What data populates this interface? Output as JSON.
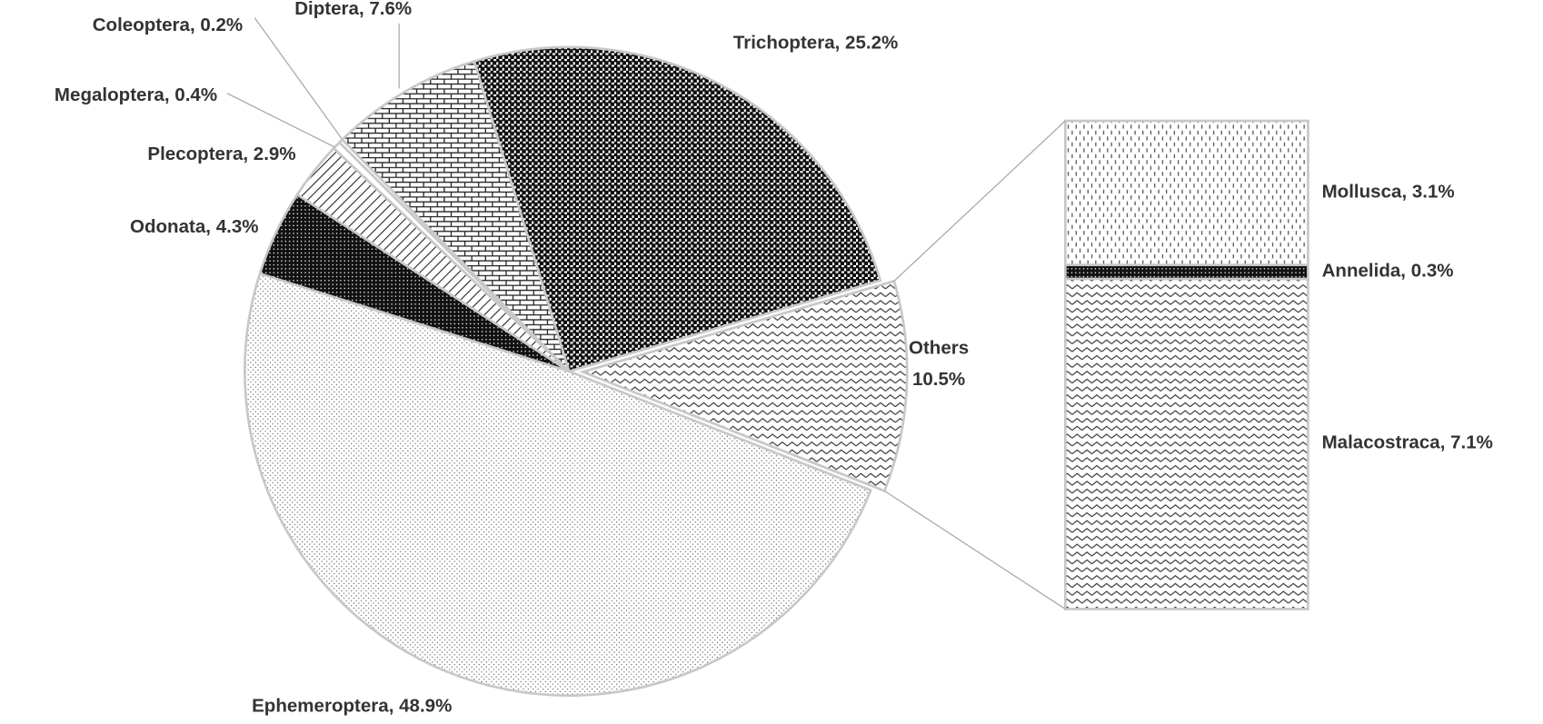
{
  "chart_data": {
    "type": "bar-of-pie",
    "categories": [
      "Trichoptera",
      "Others",
      "Ephemeroptera",
      "Odonata",
      "Plecoptera",
      "Megaloptera",
      "Coleoptera",
      "Diptera"
    ],
    "values": [
      25.2,
      10.5,
      48.9,
      4.3,
      2.9,
      0.4,
      0.2,
      7.6
    ],
    "value_labels": [
      "25.2%",
      "10.5%",
      "48.9%",
      "4.3%",
      "2.9%",
      "0.4%",
      "0.2%",
      "7.6%"
    ],
    "patterns": [
      "checker",
      "zigzag",
      "dots",
      "dark-grid",
      "diagonal",
      "plain",
      "plain",
      "brick"
    ],
    "label_separator": ", ",
    "breakout": {
      "categories": [
        "Mollusca",
        "Annelida",
        "Malacostraca"
      ],
      "values": [
        3.1,
        0.3,
        7.1
      ],
      "value_labels": [
        "3.1%",
        "0.3%",
        "7.1%"
      ],
      "patterns": [
        "dashes",
        "dark-grid",
        "zigzag"
      ]
    }
  }
}
